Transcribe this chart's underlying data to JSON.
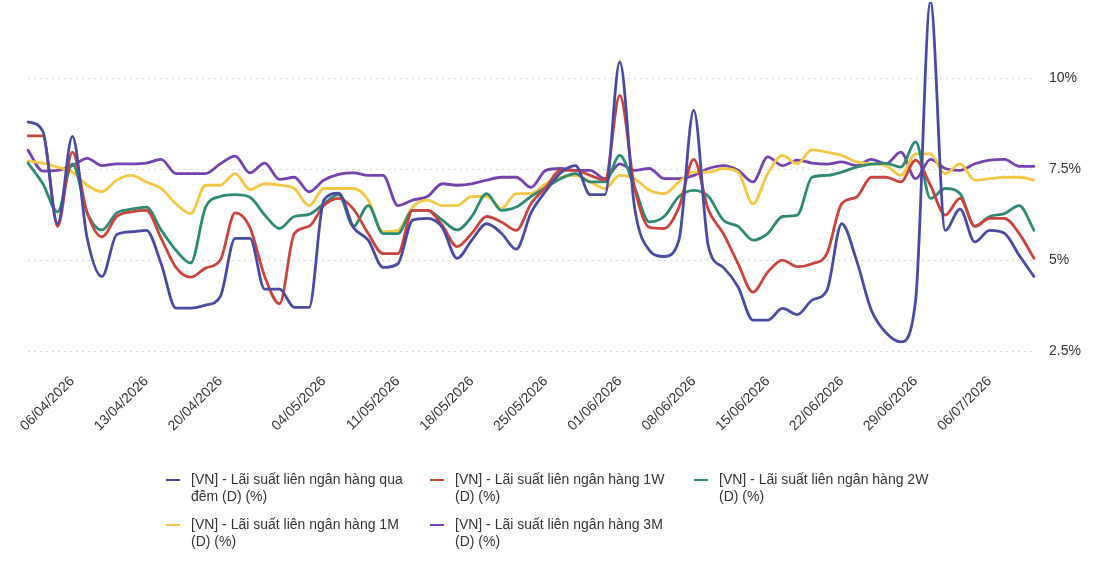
{
  "chart_data": {
    "type": "line",
    "categories": [
      null,
      null,
      null,
      "06/04/2026",
      null,
      null,
      null,
      null,
      "13/04/2026",
      null,
      null,
      null,
      null,
      "20/04/2026",
      null,
      null,
      null,
      null,
      null,
      null,
      "04/05/2026",
      null,
      null,
      null,
      null,
      "11/05/2026",
      null,
      null,
      null,
      null,
      "18/05/2026",
      null,
      null,
      null,
      null,
      "25/05/2026",
      null,
      null,
      null,
      null,
      "01/06/2026",
      null,
      null,
      null,
      null,
      "08/06/2026",
      null,
      null,
      null,
      null,
      "15/06/2026",
      null,
      null,
      null,
      null,
      "22/06/2026",
      null,
      null,
      null,
      null,
      "29/06/2026",
      null,
      null,
      null,
      null,
      "06/07/2026",
      null,
      null,
      null
    ],
    "series": [
      {
        "name": "[VN] - Lãi suất liên ngân hàng qua đêm (D) (%)",
        "color": "#4a4aa0",
        "values": [
          8.8,
          8.55,
          6.0,
          8.4,
          5.6,
          4.55,
          5.7,
          5.78,
          5.82,
          4.9,
          3.68,
          3.68,
          3.76,
          4.0,
          5.6,
          5.6,
          4.2,
          4.2,
          3.7,
          3.7,
          6.65,
          6.84,
          5.9,
          5.55,
          4.8,
          4.9,
          6.1,
          6.15,
          5.9,
          5.05,
          5.55,
          6.0,
          5.74,
          5.3,
          6.3,
          6.9,
          7.4,
          7.6,
          6.8,
          6.8,
          10.45,
          6.45,
          5.27,
          5.1,
          5.55,
          9.12,
          5.36,
          4.8,
          4.26,
          3.35,
          3.35,
          3.67,
          3.5,
          3.9,
          4.17,
          6.0,
          5.0,
          3.63,
          3.0,
          2.75,
          3.9,
          12.1,
          5.82,
          6.4,
          5.5,
          5.82,
          5.74,
          5.13,
          4.55
        ]
      },
      {
        "name": "[VN] - Lãi suất liên ngân hàng 1W (D) (%)",
        "color": "#c9443f",
        "values": [
          8.42,
          8.42,
          5.93,
          7.97,
          6.3,
          5.64,
          6.2,
          6.33,
          6.37,
          5.6,
          4.8,
          4.53,
          4.78,
          5.0,
          6.3,
          5.9,
          4.55,
          3.8,
          5.73,
          5.93,
          6.5,
          6.7,
          6.4,
          5.73,
          5.18,
          5.18,
          6.37,
          6.37,
          5.96,
          5.37,
          5.74,
          6.2,
          6.05,
          5.82,
          6.55,
          7.0,
          7.47,
          7.47,
          7.33,
          7.2,
          9.53,
          7.0,
          5.9,
          5.87,
          6.45,
          7.77,
          6.37,
          5.73,
          4.9,
          4.12,
          4.67,
          5.0,
          4.82,
          4.9,
          5.18,
          6.55,
          6.73,
          7.28,
          7.28,
          7.15,
          7.75,
          7.06,
          6.24,
          6.7,
          5.93,
          6.15,
          6.15,
          5.73,
          5.05
        ]
      },
      {
        "name": "[VN] - Lãi suất liên ngân hàng 2W (D) (%)",
        "color": "#2e8a73",
        "values": [
          7.67,
          7.1,
          6.33,
          7.65,
          6.3,
          5.83,
          6.3,
          6.4,
          6.46,
          5.83,
          5.27,
          4.92,
          6.45,
          6.75,
          6.8,
          6.73,
          6.24,
          5.87,
          6.2,
          6.26,
          6.55,
          6.8,
          5.93,
          6.5,
          5.73,
          5.73,
          6.37,
          6.37,
          6.1,
          5.83,
          6.2,
          6.83,
          6.37,
          6.46,
          6.75,
          7.0,
          7.24,
          7.38,
          7.15,
          7.15,
          7.88,
          7.0,
          6.05,
          6.2,
          6.75,
          6.92,
          6.75,
          6.1,
          5.93,
          5.55,
          5.73,
          6.2,
          6.24,
          7.28,
          7.33,
          7.42,
          7.56,
          7.64,
          7.66,
          7.56,
          8.25,
          6.7,
          6.97,
          6.83,
          5.93,
          6.2,
          6.28,
          6.5,
          5.82
        ]
      },
      {
        "name": "[VN] - Lãi suất liên ngân hàng 1M (D) (%)",
        "color": "#f4c744",
        "values": [
          7.73,
          7.67,
          7.56,
          7.42,
          7.06,
          6.88,
          7.2,
          7.33,
          7.15,
          6.97,
          6.55,
          6.28,
          7.06,
          7.06,
          7.38,
          6.94,
          7.1,
          7.06,
          6.97,
          6.5,
          6.97,
          6.97,
          6.97,
          6.65,
          5.78,
          5.82,
          6.46,
          6.65,
          6.5,
          6.5,
          6.75,
          6.75,
          6.42,
          6.83,
          6.83,
          7.1,
          7.28,
          7.33,
          7.15,
          6.97,
          7.33,
          7.24,
          6.92,
          6.83,
          7.15,
          7.42,
          7.42,
          7.52,
          7.42,
          6.55,
          7.38,
          7.88,
          7.65,
          8.04,
          7.97,
          7.88,
          7.7,
          7.65,
          7.6,
          7.33,
          7.92,
          7.92,
          7.38,
          7.65,
          7.2,
          7.24,
          7.28,
          7.28,
          7.2
        ]
      },
      {
        "name": "[VN] - Lãi suất liên ngân hàng 3M (D) (%)",
        "color": "#7543b0",
        "values": [
          8.02,
          7.45,
          7.47,
          7.6,
          7.8,
          7.6,
          7.65,
          7.65,
          7.67,
          7.77,
          7.38,
          7.38,
          7.38,
          7.65,
          7.86,
          7.4,
          7.67,
          7.22,
          7.28,
          6.88,
          7.2,
          7.36,
          7.4,
          7.33,
          7.33,
          6.5,
          6.65,
          6.75,
          7.1,
          7.06,
          7.1,
          7.2,
          7.28,
          7.28,
          7.0,
          7.47,
          7.52,
          7.47,
          7.47,
          7.24,
          7.65,
          7.47,
          7.52,
          7.24,
          7.24,
          7.33,
          7.52,
          7.6,
          7.47,
          7.15,
          7.84,
          7.6,
          7.75,
          7.67,
          7.64,
          7.7,
          7.6,
          7.77,
          7.65,
          7.97,
          7.24,
          7.77,
          7.52,
          7.47,
          7.65,
          7.75,
          7.77,
          7.58,
          7.58
        ]
      }
    ],
    "ylim": [
      2.5,
      12.1
    ],
    "yticks": [
      {
        "value": 2.5,
        "label": "2.5%"
      },
      {
        "value": 5,
        "label": "5%"
      },
      {
        "value": 7.5,
        "label": "7.5%"
      },
      {
        "value": 10,
        "label": "10%"
      }
    ],
    "grid": "y",
    "legend": "bottom"
  }
}
